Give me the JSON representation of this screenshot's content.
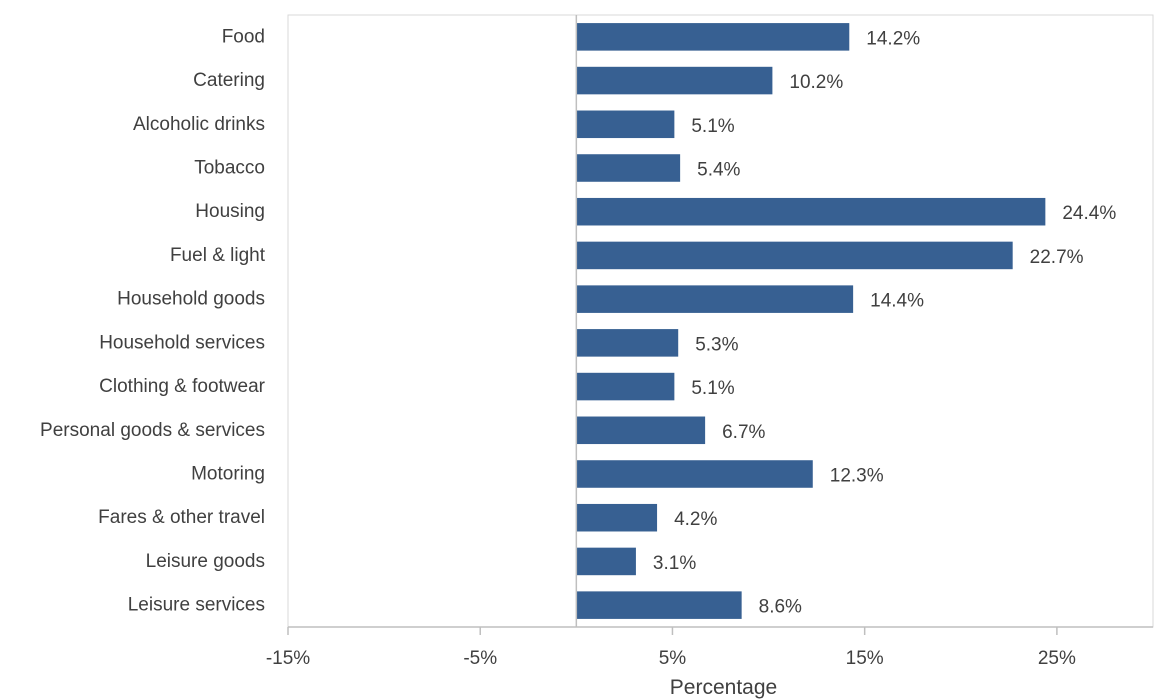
{
  "chart_data": {
    "type": "bar",
    "orientation": "horizontal",
    "categories": [
      "Food",
      "Catering",
      "Alcoholic drinks",
      "Tobacco",
      "Housing",
      "Fuel & light",
      "Household goods",
      "Household services",
      "Clothing & footwear",
      "Personal goods & services",
      "Motoring",
      "Fares & other travel",
      "Leisure goods",
      "Leisure services"
    ],
    "values": [
      14.2,
      10.2,
      5.1,
      5.4,
      24.4,
      22.7,
      14.4,
      5.3,
      5.1,
      6.7,
      12.3,
      4.2,
      3.1,
      8.6
    ],
    "value_labels": [
      "14.2%",
      "10.2%",
      "5.1%",
      "5.4%",
      "24.4%",
      "22.7%",
      "14.4%",
      "5.3%",
      "5.1%",
      "6.7%",
      "12.3%",
      "4.2%",
      "3.1%",
      "8.6%"
    ],
    "xlabel": "Percentage",
    "ylabel": "",
    "xlim": [
      -15,
      30
    ],
    "x_ticks": [
      -15,
      -5,
      5,
      15,
      25
    ],
    "x_tick_labels": [
      "-15%",
      "-5%",
      "5%",
      "15%",
      "25%"
    ],
    "grid": false,
    "legend": "none",
    "bar_color": "#376092"
  }
}
